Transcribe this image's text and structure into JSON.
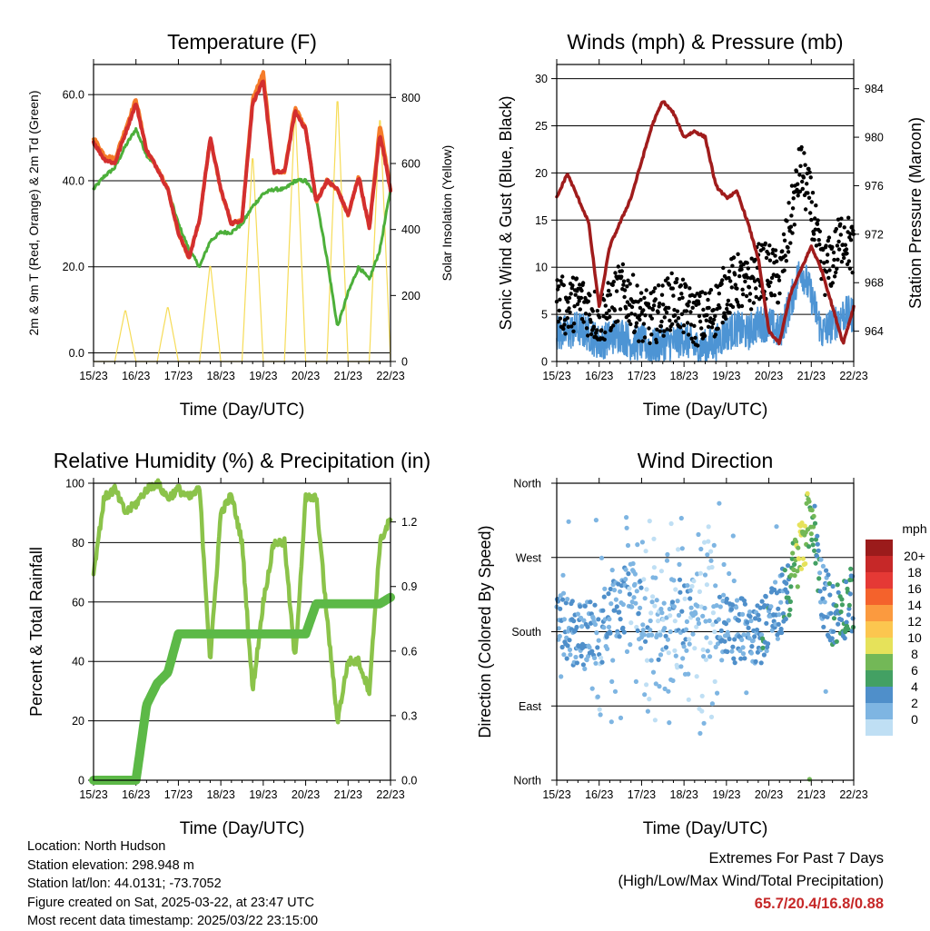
{
  "days": [
    "15/23",
    "16/23",
    "17/23",
    "18/23",
    "19/23",
    "20/23",
    "21/23",
    "22/23"
  ],
  "x_axis_label": "Time (Day/UTC)",
  "panels": {
    "temperature": {
      "title": "Temperature (F)",
      "ylabel_left": "2m & 9m T (Red, Orange) & 2m Td (Green)",
      "ylabel_right": "Solar Insolation (Yellow)",
      "left_ticks": [
        "0.0",
        "20.0",
        "40.0",
        "60.0"
      ],
      "right_ticks": [
        "0",
        "200",
        "400",
        "600",
        "800"
      ]
    },
    "winds": {
      "title": "Winds (mph) & Pressure (mb)",
      "ylabel_left": "Sonic Wind & Gust (Blue, Black)",
      "ylabel_right": "Station Pressure (Maroon)",
      "left_ticks": [
        "0",
        "5",
        "10",
        "15",
        "20",
        "25",
        "30"
      ],
      "right_ticks": [
        "964",
        "968",
        "972",
        "976",
        "980",
        "984"
      ]
    },
    "humidity": {
      "title": "Relative Humidity (%) & Precipitation (in)",
      "ylabel_left": "Percent & Total Rainfall",
      "left_ticks": [
        "0",
        "20",
        "40",
        "60",
        "80",
        "100"
      ],
      "right_ticks": [
        "0.0",
        "0.3",
        "0.6",
        "0.9",
        "1.2"
      ]
    },
    "direction": {
      "title": "Wind Direction",
      "ylabel_left": "Direction (Colored By Speed)",
      "dir_labels": [
        "North",
        "East",
        "South",
        "West",
        "North"
      ],
      "legend_title": "mph",
      "legend_labels": [
        "20+",
        "18",
        "16",
        "14",
        "12",
        "10",
        "8",
        "6",
        "4",
        "2",
        "0"
      ],
      "legend_colors": [
        "#9b1b1b",
        "#c62828",
        "#e53935",
        "#f4622c",
        "#fb9a3f",
        "#fcc64f",
        "#e6e25a",
        "#73b857",
        "#43a063",
        "#4f8fca",
        "#7eb5e2",
        "#bfdff4"
      ]
    }
  },
  "colors": {
    "temp_2m": "#d32f2f",
    "temp_9m": "#f57c2a",
    "dewpoint": "#4caf3a",
    "solar": "#f6dc58",
    "pressure": "#a01c1c",
    "gust": "#000000",
    "wind": "#4d94d4",
    "rh": "#8bc34a",
    "precip": "#5cb947"
  },
  "info": {
    "location": "Location: North Hudson",
    "elevation": "Station elevation: 298.948 m",
    "latlon": "Station lat/lon: 44.0131; -73.7052",
    "created": "Figure created on Sat, 2025-03-22, at 23:47 UTC",
    "recent": "Most recent data timestamp: 2025/03/22 23:15:00"
  },
  "extremes": {
    "line1": "Extremes For Past 7 Days",
    "line2": "(High/Low/Max Wind/Total Precipitation)",
    "values": "65.7/20.4/16.8/0.88"
  },
  "chart_data": [
    {
      "type": "line",
      "title": "Temperature (F)",
      "xlabel": "Time (Day/UTC)",
      "ylabel": "2m & 9m T (Red, Orange) & 2m Td (Green)",
      "ylabel_right": "Solar Insolation (Yellow)",
      "x": [
        15.0,
        15.25,
        15.5,
        15.75,
        16.0,
        16.25,
        16.5,
        16.75,
        17.0,
        17.25,
        17.5,
        17.75,
        18.0,
        18.25,
        18.5,
        18.75,
        19.0,
        19.25,
        19.5,
        19.75,
        20.0,
        20.25,
        20.5,
        20.75,
        21.0,
        21.25,
        21.5,
        21.75,
        22.0
      ],
      "ylim": [
        -2,
        67
      ],
      "ylim_right": [
        0,
        900
      ],
      "series": [
        {
          "name": "2m T",
          "axis": "left",
          "values": [
            49,
            45,
            44,
            51,
            58,
            47,
            43,
            38,
            28,
            22,
            31,
            50,
            38,
            30,
            31,
            58,
            63,
            42,
            42,
            56,
            52,
            35,
            40,
            38,
            32,
            41,
            29,
            51,
            38
          ]
        },
        {
          "name": "9m T",
          "axis": "left",
          "values": [
            50,
            46,
            45,
            52,
            59,
            47,
            43,
            38,
            28,
            22,
            31,
            50,
            38,
            30,
            31,
            59,
            65,
            42,
            42,
            57,
            52,
            35,
            40,
            38,
            32,
            41,
            29,
            53,
            38
          ]
        },
        {
          "name": "2m Td",
          "axis": "left",
          "values": [
            38,
            41,
            43,
            48,
            52,
            46,
            43,
            38,
            30,
            24,
            20,
            26,
            28,
            28,
            30,
            34,
            37,
            38,
            38,
            40,
            40,
            36,
            22,
            6,
            14,
            20,
            17,
            24,
            38
          ]
        },
        {
          "name": "Solar Insolation",
          "axis": "right",
          "values": [
            0,
            0,
            0,
            160,
            0,
            0,
            0,
            170,
            0,
            0,
            0,
            300,
            0,
            0,
            0,
            640,
            0,
            0,
            0,
            780,
            0,
            0,
            0,
            820,
            0,
            0,
            0,
            760,
            0
          ]
        }
      ]
    },
    {
      "type": "line",
      "title": "Winds (mph) & Pressure (mb)",
      "xlabel": "Time (Day/UTC)",
      "ylabel": "Sonic Wind & Gust (Blue, Black)",
      "ylabel_right": "Station Pressure (Maroon)",
      "x": [
        15.0,
        15.25,
        15.5,
        15.75,
        16.0,
        16.25,
        16.5,
        16.75,
        17.0,
        17.25,
        17.5,
        17.75,
        18.0,
        18.25,
        18.5,
        18.75,
        19.0,
        19.25,
        19.5,
        19.75,
        20.0,
        20.25,
        20.5,
        20.75,
        21.0,
        21.25,
        21.5,
        21.75,
        22.0
      ],
      "ylim": [
        0,
        31.5
      ],
      "ylim_right": [
        961.5,
        986
      ],
      "series": [
        {
          "name": "Sonic Wind",
          "axis": "left",
          "values": [
            3,
            3,
            3.5,
            3,
            2,
            2.5,
            3,
            2,
            2,
            1.5,
            2,
            2,
            2.5,
            1.5,
            1.5,
            2,
            3,
            3.5,
            3,
            4,
            4,
            3,
            6,
            10,
            7,
            3,
            4,
            5,
            5
          ]
        },
        {
          "name": "Gust",
          "axis": "left",
          "values": [
            6,
            5,
            6,
            5,
            4,
            5,
            7,
            6,
            4,
            4,
            5,
            6,
            5,
            4,
            4,
            5,
            7,
            8,
            7,
            9,
            9,
            8,
            14,
            20,
            16,
            9,
            10,
            13,
            11
          ]
        },
        {
          "name": "Station Pressure",
          "axis": "right",
          "values": [
            975,
            977,
            975,
            973,
            966,
            971,
            973,
            975,
            978,
            981,
            983,
            982,
            980,
            980.5,
            980,
            976,
            975,
            975.5,
            973,
            970,
            964,
            963,
            967,
            969,
            971,
            969,
            966,
            963,
            966
          ]
        }
      ]
    },
    {
      "type": "line",
      "title": "Relative Humidity (%) & Precipitation (in)",
      "xlabel": "Time (Day/UTC)",
      "ylabel": "Percent & Total Rainfall",
      "x": [
        15.0,
        15.25,
        15.5,
        15.75,
        16.0,
        16.25,
        16.5,
        16.75,
        17.0,
        17.25,
        17.5,
        17.75,
        18.0,
        18.25,
        18.5,
        18.75,
        19.0,
        19.25,
        19.5,
        19.75,
        20.0,
        20.25,
        20.5,
        20.75,
        21.0,
        21.25,
        21.5,
        21.75,
        22.0
      ],
      "ylim": [
        0,
        100
      ],
      "ylim_right": [
        0,
        1.38
      ],
      "series": [
        {
          "name": "Relative Humidity",
          "axis": "left",
          "values": [
            70,
            95,
            98,
            90,
            93,
            98,
            100,
            95,
            98,
            95,
            98,
            40,
            90,
            96,
            80,
            30,
            60,
            80,
            80,
            40,
            95,
            95,
            55,
            20,
            40,
            40,
            30,
            80,
            88
          ]
        },
        {
          "name": "Total Precipitation",
          "axis": "right",
          "values": [
            0,
            0,
            0,
            0,
            0,
            0.35,
            0.45,
            0.5,
            0.68,
            0.68,
            0.68,
            0.68,
            0.68,
            0.68,
            0.68,
            0.68,
            0.68,
            0.68,
            0.68,
            0.68,
            0.68,
            0.82,
            0.82,
            0.82,
            0.82,
            0.82,
            0.82,
            0.82,
            0.85
          ]
        }
      ]
    },
    {
      "type": "scatter",
      "title": "Wind Direction",
      "xlabel": "Time (Day/UTC)",
      "ylabel": "Direction (Colored By Speed)",
      "y_categories": [
        "North",
        "East",
        "South",
        "West",
        "North"
      ],
      "colorbar_title": "mph",
      "colorbar_ticks": [
        "20+",
        "18",
        "16",
        "14",
        "12",
        "10",
        "8",
        "6",
        "4",
        "2",
        "0"
      ],
      "x": [
        15.0,
        15.25,
        15.5,
        15.75,
        16.0,
        16.25,
        16.5,
        16.75,
        17.0,
        17.25,
        17.5,
        17.75,
        18.0,
        18.25,
        18.5,
        18.75,
        19.0,
        19.25,
        19.5,
        19.75,
        20.0,
        20.25,
        20.5,
        20.75,
        21.0,
        21.25,
        21.5,
        21.75,
        22.0
      ],
      "series": [
        {
          "name": "direction_deg",
          "values": [
            190,
            185,
            175,
            180,
            170,
            200,
            210,
            230,
            200,
            180,
            190,
            210,
            200,
            190,
            180,
            200,
            185,
            180,
            190,
            175,
            200,
            210,
            240,
            280,
            330,
            230,
            200,
            210,
            220
          ]
        },
        {
          "name": "speed_mph",
          "values": [
            3,
            3,
            3.5,
            3,
            2,
            2.5,
            3,
            2,
            2,
            1.5,
            2,
            2,
            2.5,
            1.5,
            1.5,
            2,
            3,
            3.5,
            3,
            4,
            4,
            3,
            6,
            10,
            7,
            3,
            4,
            5,
            5
          ]
        }
      ]
    }
  ]
}
